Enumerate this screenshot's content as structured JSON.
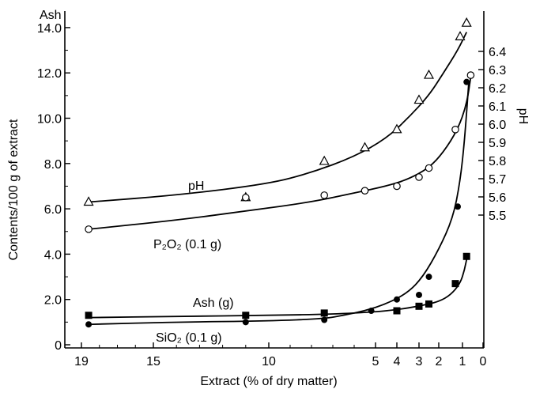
{
  "chart_data": {
    "type": "scatter",
    "title": "",
    "xlabel": "Extract (% of dry matter)",
    "x_ticks": [
      19,
      15,
      10,
      5,
      4,
      3,
      2,
      1,
      0
    ],
    "x_tick_labels": [
      "19",
      "15",
      "10",
      "5",
      "4",
      "3",
      "2",
      "1",
      "0"
    ],
    "y_left": {
      "label": "Contents/100 g of extract",
      "unit_label": "Ash",
      "ylim": [
        0,
        14.5
      ],
      "ticks": [
        0,
        2,
        4,
        6,
        8,
        10,
        12,
        14
      ],
      "tick_labels": [
        "0",
        "2.0",
        "4.0",
        "6.0",
        "8.0",
        "10.0",
        "12.0",
        "14.0"
      ]
    },
    "y_right": {
      "label": "pH",
      "ticks": [
        5.5,
        5.6,
        5.7,
        5.8,
        5.9,
        6.0,
        6.1,
        6.2,
        6.3,
        6.4
      ],
      "tick_labels": [
        "5.5",
        "5.6",
        "5.7",
        "5.8",
        "5.9",
        "6.0",
        "6.1",
        "6.2",
        "6.3",
        "6.4"
      ]
    },
    "series": [
      {
        "name": "pH",
        "marker": "triangle-open",
        "points": [
          [
            18.6,
            6.3
          ],
          [
            11.0,
            6.5
          ],
          [
            7.4,
            8.1
          ],
          [
            5.5,
            8.7
          ],
          [
            4.0,
            9.5
          ],
          [
            3.0,
            10.8
          ],
          [
            2.5,
            11.9
          ],
          [
            1.1,
            13.6
          ],
          [
            0.8,
            14.2
          ]
        ],
        "curve": [
          [
            18.6,
            6.3
          ],
          [
            14,
            6.6
          ],
          [
            10,
            7.1
          ],
          [
            8,
            7.6
          ],
          [
            6,
            8.3
          ],
          [
            4.5,
            9.1
          ],
          [
            3.5,
            10.0
          ],
          [
            2.5,
            11.0
          ],
          [
            1.8,
            12.0
          ],
          [
            1.2,
            13.0
          ],
          [
            0.8,
            13.8
          ]
        ]
      },
      {
        "name": "P₂O₂ (0.1 g)",
        "marker": "circle-open",
        "points": [
          [
            18.6,
            5.1
          ],
          [
            11.0,
            6.5
          ],
          [
            7.4,
            6.6
          ],
          [
            5.5,
            6.8
          ],
          [
            4.0,
            7.0
          ],
          [
            3.0,
            7.4
          ],
          [
            2.5,
            7.8
          ],
          [
            1.3,
            9.5
          ],
          [
            0.6,
            11.9
          ]
        ],
        "curve": [
          [
            18.6,
            5.1
          ],
          [
            14,
            5.5
          ],
          [
            11,
            5.9
          ],
          [
            8,
            6.3
          ],
          [
            6,
            6.7
          ],
          [
            4.5,
            7.0
          ],
          [
            3.5,
            7.3
          ],
          [
            2.5,
            7.8
          ],
          [
            1.8,
            8.5
          ],
          [
            1.2,
            9.5
          ],
          [
            0.8,
            10.6
          ],
          [
            0.6,
            11.8
          ]
        ]
      },
      {
        "name": "Ash (g)",
        "marker": "circle-filled",
        "points": [
          [
            18.6,
            0.9
          ],
          [
            11.0,
            1.0
          ],
          [
            7.4,
            1.1
          ],
          [
            5.2,
            1.5
          ],
          [
            4.0,
            2.0
          ],
          [
            3.0,
            2.2
          ],
          [
            2.5,
            3.0
          ],
          [
            1.2,
            6.1
          ],
          [
            0.8,
            11.6
          ]
        ],
        "curve": [
          [
            18.6,
            0.9
          ],
          [
            14,
            1.0
          ],
          [
            10,
            1.05
          ],
          [
            7.4,
            1.15
          ],
          [
            6.5,
            1.3
          ],
          [
            5.5,
            1.5
          ],
          [
            4.5,
            1.8
          ],
          [
            3.5,
            2.3
          ],
          [
            2.8,
            3.0
          ],
          [
            2.0,
            4.2
          ],
          [
            1.4,
            5.6
          ],
          [
            1.1,
            7.2
          ],
          [
            0.9,
            9.0
          ],
          [
            0.7,
            11.5
          ]
        ]
      },
      {
        "name": "SiO₂ (0.1 g)",
        "marker": "square-filled",
        "points": [
          [
            18.6,
            1.3
          ],
          [
            11.0,
            1.3
          ],
          [
            7.4,
            1.4
          ],
          [
            4.0,
            1.5
          ],
          [
            3.0,
            1.7
          ],
          [
            2.5,
            1.8
          ],
          [
            1.3,
            2.7
          ],
          [
            0.8,
            3.9
          ]
        ],
        "curve": [
          [
            18.6,
            1.2
          ],
          [
            14,
            1.25
          ],
          [
            10,
            1.3
          ],
          [
            7,
            1.35
          ],
          [
            5,
            1.45
          ],
          [
            4,
            1.55
          ],
          [
            3,
            1.7
          ],
          [
            2,
            1.9
          ],
          [
            1.5,
            2.2
          ],
          [
            1.1,
            2.7
          ],
          [
            0.9,
            3.3
          ],
          [
            0.75,
            4.0
          ]
        ]
      }
    ],
    "annotations": {
      "pH": "pH",
      "P2O2": "P₂O₂ (0.1 g)",
      "Ash": "Ash (g)",
      "SiO2": "SiO₂ (0.1 g)"
    }
  }
}
